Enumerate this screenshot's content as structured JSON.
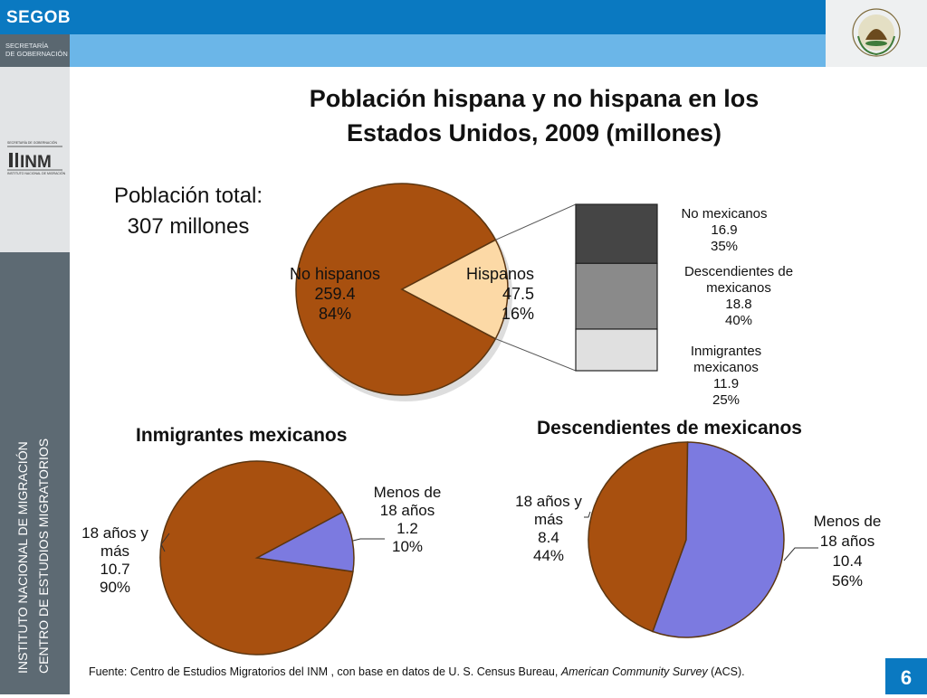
{
  "header": {
    "brand": "SEGOB",
    "secretaria_line1": "SECRETARÍA",
    "secretaria_line2": "DE GOBERNACIÓN",
    "crest_text": "ESTADOS UNIDOS MEXICANOS",
    "inm_header": "SECRETARÍA DE GOBERNACIÓN",
    "inm_logo_text": "INM",
    "inm_subtitle": "INSTITUTO NACIONAL DE MIGRACIÓN"
  },
  "sidebar": {
    "line1": "INSTITUTO NACIONAL DE MIGRACIÓN",
    "line2": "CENTRO DE ESTUDIOS MIGRATORIOS"
  },
  "slide": {
    "title_line1": "Población hispana y no hispana en  los",
    "title_line2": "Estados Unidos, 2009 (millones)",
    "total_line1": "Población total:",
    "total_line2": "307 millones",
    "source_prefix": "Fuente: Centro  de Estudios Migratorios del INM , con base en datos  de U. S. Census Bureau, ",
    "source_italic": "American Community Survey",
    "source_suffix": " (ACS).",
    "page_number": "6"
  },
  "colors": {
    "header_blue": "#0a79c1",
    "header_light_blue": "#6bb6e8",
    "sidebar_gray": "#5d6a73",
    "brown": "#a8500f",
    "peach": "#fcd9a6",
    "lavender": "#7c7ae0",
    "dark_gray": "#454545",
    "mid_gray": "#8a8a8a",
    "light_gray": "#e0e0e0"
  },
  "chart_data": [
    {
      "type": "pie",
      "title": "Población hispana y no hispana en  los Estados Unidos, 2009 (millones)",
      "labels": [
        "No hispanos",
        "Hispanos"
      ],
      "values": [
        259.4,
        47.5
      ],
      "display_values": [
        "259.4",
        "47.5"
      ],
      "percents": [
        "84%",
        "16%"
      ],
      "colors": [
        "#a8500f",
        "#fcd9a6"
      ]
    },
    {
      "type": "bar",
      "stacked": true,
      "breakdown_of": "Hispanos",
      "categories": [
        "No mexicanos",
        "Descendientes de mexicanos",
        "Inmigrantes mexicanos"
      ],
      "values": [
        16.9,
        18.8,
        11.9
      ],
      "display_values": [
        "16.9",
        "18.8",
        "11.9"
      ],
      "percents": [
        "35%",
        "40%",
        "25%"
      ],
      "colors": [
        "#454545",
        "#8a8a8a",
        "#e0e0e0"
      ]
    },
    {
      "type": "pie",
      "title": "Inmigrantes mexicanos",
      "labels": [
        "18 años y más",
        "Menos de 18 años"
      ],
      "values": [
        10.7,
        1.2
      ],
      "display_values": [
        "10.7",
        "1.2"
      ],
      "percents": [
        "90%",
        "10%"
      ],
      "colors": [
        "#a8500f",
        "#7c7ae0"
      ]
    },
    {
      "type": "pie",
      "title": "Descendientes de mexicanos",
      "labels": [
        "18  años y más",
        "Menos de 18 años"
      ],
      "values": [
        8.4,
        10.4
      ],
      "display_values": [
        "8.4",
        "10.4"
      ],
      "percents": [
        "44%",
        "56%"
      ],
      "colors": [
        "#a8500f",
        "#7c7ae0"
      ]
    }
  ]
}
